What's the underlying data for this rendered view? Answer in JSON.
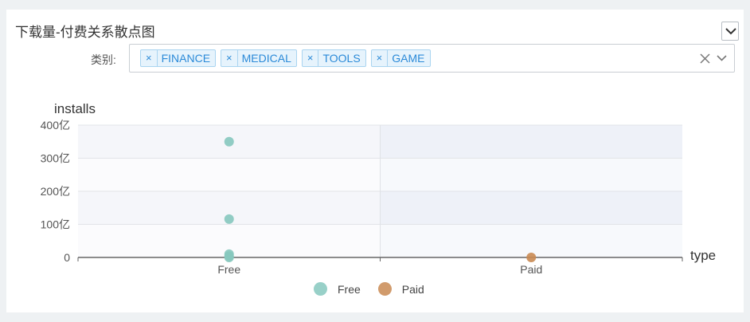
{
  "panel": {
    "title": "下载量-付费关系散点图"
  },
  "filter": {
    "label": "类别:",
    "tags": [
      {
        "label": "FINANCE",
        "remove": "×"
      },
      {
        "label": "MEDICAL",
        "remove": "×"
      },
      {
        "label": "TOOLS",
        "remove": "×"
      },
      {
        "label": "GAME",
        "remove": "×"
      }
    ]
  },
  "chart_data": {
    "type": "scatter",
    "xlabel": "type",
    "ylabel": "installs",
    "categories": [
      "Free",
      "Paid"
    ],
    "ylim": [
      0,
      40000000000
    ],
    "yticks": [
      {
        "value": 0,
        "label": "0"
      },
      {
        "value": 10000000000,
        "label": "100亿"
      },
      {
        "value": 20000000000,
        "label": "200亿"
      },
      {
        "value": 30000000000,
        "label": "300亿"
      },
      {
        "value": 40000000000,
        "label": "400亿"
      }
    ],
    "grid": true,
    "legend_position": "bottom-center",
    "series": [
      {
        "name": "Free",
        "color": "#86c8be",
        "points": [
          {
            "x": "Free",
            "y": 35000000000
          },
          {
            "x": "Free",
            "y": 11600000000
          },
          {
            "x": "Free",
            "y": 1000000000
          },
          {
            "x": "Free",
            "y": 400000000
          },
          {
            "x": "Free",
            "y": 0
          }
        ]
      },
      {
        "name": "Paid",
        "color": "#c98a52",
        "points": [
          {
            "x": "Paid",
            "y": 10000000
          }
        ]
      }
    ]
  }
}
